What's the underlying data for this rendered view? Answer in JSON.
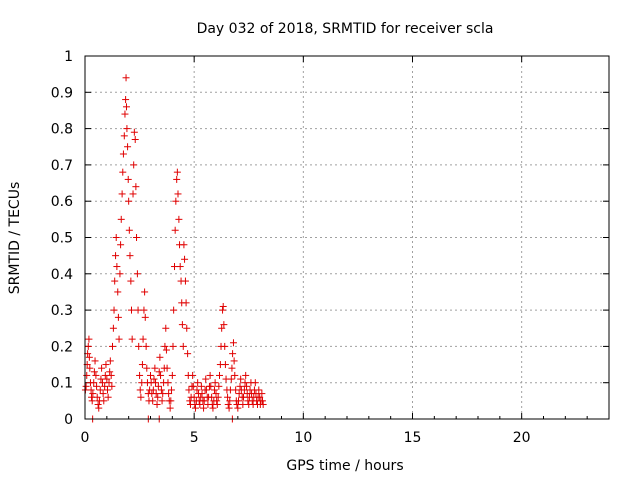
{
  "chart_data": {
    "type": "scatter",
    "title": "Day 032 of 2018, SRMTID for receiver scla",
    "xlabel": "GPS time / hours",
    "ylabel": "SRMTID / TECUs",
    "xlim": [
      0,
      24
    ],
    "ylim": [
      0,
      1
    ],
    "xticks": [
      0,
      5,
      10,
      15,
      20
    ],
    "xtick_labels": [
      "0",
      "5",
      "10",
      "15",
      "20"
    ],
    "yticks": [
      0,
      0.1,
      0.2,
      0.3,
      0.4,
      0.5,
      0.6,
      0.7,
      0.8,
      0.9,
      1
    ],
    "ytick_labels": [
      "0",
      "0.1",
      "0.2",
      "0.3",
      "0.4",
      "0.5",
      "0.6",
      "0.7",
      "0.8",
      "0.9",
      "1"
    ],
    "grid": true,
    "legend": "none",
    "marker": "plus",
    "color": "#e00000",
    "series": [
      {
        "points": [
          [
            0.02,
            0.08
          ],
          [
            0.05,
            0.09
          ],
          [
            0.08,
            0.12
          ],
          [
            0.1,
            0.15
          ],
          [
            0.12,
            0.18
          ],
          [
            0.15,
            0.2
          ],
          [
            0.18,
            0.22
          ],
          [
            0.2,
            0.17
          ],
          [
            0.22,
            0.14
          ],
          [
            0.25,
            0.1
          ],
          [
            0.28,
            0.08
          ],
          [
            0.3,
            0.06
          ],
          [
            0.33,
            0.05
          ],
          [
            0.36,
            0.07
          ],
          [
            0.4,
            0.1
          ],
          [
            0.43,
            0.13
          ],
          [
            0.46,
            0.16
          ],
          [
            0.5,
            0.12
          ],
          [
            0.53,
            0.09
          ],
          [
            0.56,
            0.06
          ],
          [
            0.6,
            0.04
          ],
          [
            0.63,
            0.03
          ],
          [
            0.66,
            0.05
          ],
          [
            0.7,
            0.08
          ],
          [
            0.73,
            0.11
          ],
          [
            0.76,
            0.14
          ],
          [
            0.8,
            0.1
          ],
          [
            0.83,
            0.07
          ],
          [
            0.86,
            0.05
          ],
          [
            0.9,
            0.09
          ],
          [
            0.93,
            0.12
          ],
          [
            0.96,
            0.15
          ],
          [
            1.0,
            0.11
          ],
          [
            1.03,
            0.08
          ],
          [
            1.06,
            0.06
          ],
          [
            1.1,
            0.1
          ],
          [
            1.13,
            0.13
          ],
          [
            1.16,
            0.16
          ],
          [
            1.2,
            0.12
          ],
          [
            1.23,
            0.09
          ],
          [
            1.26,
            0.2
          ],
          [
            1.3,
            0.25
          ],
          [
            1.33,
            0.3
          ],
          [
            1.36,
            0.38
          ],
          [
            1.4,
            0.45
          ],
          [
            1.43,
            0.5
          ],
          [
            1.46,
            0.42
          ],
          [
            1.5,
            0.35
          ],
          [
            1.53,
            0.28
          ],
          [
            1.56,
            0.22
          ],
          [
            1.6,
            0.4
          ],
          [
            1.63,
            0.48
          ],
          [
            1.66,
            0.55
          ],
          [
            1.7,
            0.62
          ],
          [
            1.73,
            0.68
          ],
          [
            1.76,
            0.73
          ],
          [
            1.8,
            0.78
          ],
          [
            1.83,
            0.84
          ],
          [
            1.86,
            0.88
          ],
          [
            1.88,
            0.94
          ],
          [
            1.9,
            0.86
          ],
          [
            1.92,
            0.8
          ],
          [
            1.95,
            0.75
          ],
          [
            1.98,
            0.66
          ],
          [
            2.0,
            0.6
          ],
          [
            2.03,
            0.52
          ],
          [
            2.06,
            0.45
          ],
          [
            2.1,
            0.38
          ],
          [
            2.13,
            0.3
          ],
          [
            2.16,
            0.22
          ],
          [
            2.2,
            0.62
          ],
          [
            2.23,
            0.7
          ],
          [
            2.26,
            0.79
          ],
          [
            2.3,
            0.77
          ],
          [
            2.33,
            0.64
          ],
          [
            2.36,
            0.5
          ],
          [
            2.4,
            0.4
          ],
          [
            2.43,
            0.3
          ],
          [
            2.46,
            0.2
          ],
          [
            2.5,
            0.12
          ],
          [
            2.53,
            0.08
          ],
          [
            2.56,
            0.06
          ],
          [
            2.6,
            0.1
          ],
          [
            2.63,
            0.15
          ],
          [
            2.66,
            0.22
          ],
          [
            2.7,
            0.3
          ],
          [
            2.73,
            0.35
          ],
          [
            2.76,
            0.28
          ],
          [
            2.8,
            0.2
          ],
          [
            2.83,
            0.14
          ],
          [
            2.86,
            0.1
          ],
          [
            2.9,
            0.07
          ],
          [
            2.93,
            0.05
          ],
          [
            2.96,
            0.08
          ],
          [
            3.0,
            0.12
          ],
          [
            3.03,
            0.1
          ],
          [
            3.06,
            0.07
          ],
          [
            3.1,
            0.05
          ],
          [
            3.13,
            0.08
          ],
          [
            3.16,
            0.11
          ],
          [
            3.2,
            0.14
          ],
          [
            3.23,
            0.1
          ],
          [
            3.26,
            0.07
          ],
          [
            3.3,
            0.04
          ],
          [
            3.33,
            0.06
          ],
          [
            3.36,
            0.09
          ],
          [
            3.4,
            0.13
          ],
          [
            3.43,
            0.17
          ],
          [
            3.46,
            0.12
          ],
          [
            3.5,
            0.08
          ],
          [
            3.53,
            0.05
          ],
          [
            3.56,
            0.07
          ],
          [
            3.6,
            0.1
          ],
          [
            3.63,
            0.14
          ],
          [
            3.66,
            0.2
          ],
          [
            3.7,
            0.25
          ],
          [
            3.73,
            0.19
          ],
          [
            3.76,
            0.14
          ],
          [
            3.8,
            0.1
          ],
          [
            3.83,
            0.07
          ],
          [
            3.86,
            0.05
          ],
          [
            3.9,
            0.03
          ],
          [
            3.93,
            0.05
          ],
          [
            3.96,
            0.08
          ],
          [
            4.0,
            0.12
          ],
          [
            4.03,
            0.2
          ],
          [
            4.06,
            0.3
          ],
          [
            4.1,
            0.42
          ],
          [
            4.13,
            0.52
          ],
          [
            4.16,
            0.6
          ],
          [
            4.2,
            0.66
          ],
          [
            4.23,
            0.68
          ],
          [
            4.26,
            0.62
          ],
          [
            4.3,
            0.55
          ],
          [
            4.33,
            0.48
          ],
          [
            4.36,
            0.42
          ],
          [
            4.4,
            0.38
          ],
          [
            4.43,
            0.32
          ],
          [
            4.46,
            0.26
          ],
          [
            4.5,
            0.2
          ],
          [
            4.53,
            0.48
          ],
          [
            4.56,
            0.44
          ],
          [
            4.6,
            0.38
          ],
          [
            4.63,
            0.32
          ],
          [
            4.66,
            0.25
          ],
          [
            4.7,
            0.18
          ],
          [
            4.73,
            0.12
          ],
          [
            4.76,
            0.08
          ],
          [
            4.8,
            0.05
          ],
          [
            4.83,
            0.04
          ],
          [
            4.86,
            0.06
          ],
          [
            4.9,
            0.09
          ],
          [
            4.93,
            0.12
          ],
          [
            4.96,
            0.09
          ],
          [
            5.0,
            0.06
          ],
          [
            5.03,
            0.04
          ],
          [
            5.06,
            0.03
          ],
          [
            5.1,
            0.05
          ],
          [
            5.13,
            0.08
          ],
          [
            5.16,
            0.1
          ],
          [
            5.2,
            0.07
          ],
          [
            5.23,
            0.05
          ],
          [
            5.26,
            0.04
          ],
          [
            5.3,
            0.06
          ],
          [
            5.33,
            0.09
          ],
          [
            5.36,
            0.07
          ],
          [
            5.4,
            0.05
          ],
          [
            5.43,
            0.03
          ],
          [
            5.46,
            0.05
          ],
          [
            5.5,
            0.08
          ],
          [
            5.53,
            0.11
          ],
          [
            5.56,
            0.08
          ],
          [
            5.6,
            0.06
          ],
          [
            5.63,
            0.04
          ],
          [
            5.66,
            0.06
          ],
          [
            5.7,
            0.09
          ],
          [
            5.73,
            0.12
          ],
          [
            5.76,
            0.09
          ],
          [
            5.8,
            0.06
          ],
          [
            5.83,
            0.04
          ],
          [
            5.86,
            0.03
          ],
          [
            5.9,
            0.05
          ],
          [
            5.93,
            0.08
          ],
          [
            5.96,
            0.1
          ],
          [
            6.0,
            0.07
          ],
          [
            6.03,
            0.05
          ],
          [
            6.06,
            0.04
          ],
          [
            6.1,
            0.06
          ],
          [
            6.13,
            0.09
          ],
          [
            6.16,
            0.12
          ],
          [
            6.2,
            0.15
          ],
          [
            6.23,
            0.2
          ],
          [
            6.26,
            0.25
          ],
          [
            6.3,
            0.3
          ],
          [
            6.33,
            0.31
          ],
          [
            6.36,
            0.26
          ],
          [
            6.4,
            0.2
          ],
          [
            6.43,
            0.15
          ],
          [
            6.46,
            0.11
          ],
          [
            6.5,
            0.08
          ],
          [
            6.53,
            0.06
          ],
          [
            6.56,
            0.04
          ],
          [
            6.6,
            0.03
          ],
          [
            6.63,
            0.05
          ],
          [
            6.66,
            0.08
          ],
          [
            6.7,
            0.11
          ],
          [
            6.73,
            0.14
          ],
          [
            6.76,
            0.18
          ],
          [
            6.8,
            0.21
          ],
          [
            6.83,
            0.16
          ],
          [
            6.86,
            0.12
          ],
          [
            6.9,
            0.08
          ],
          [
            6.93,
            0.05
          ],
          [
            6.96,
            0.04
          ],
          [
            7.0,
            0.03
          ],
          [
            7.03,
            0.05
          ],
          [
            7.06,
            0.07
          ],
          [
            7.1,
            0.09
          ],
          [
            7.13,
            0.11
          ],
          [
            7.16,
            0.08
          ],
          [
            7.2,
            0.06
          ],
          [
            7.23,
            0.04
          ],
          [
            7.26,
            0.06
          ],
          [
            7.3,
            0.08
          ],
          [
            7.33,
            0.1
          ],
          [
            7.36,
            0.12
          ],
          [
            7.4,
            0.09
          ],
          [
            7.43,
            0.07
          ],
          [
            7.46,
            0.05
          ],
          [
            7.5,
            0.04
          ],
          [
            7.53,
            0.06
          ],
          [
            7.56,
            0.08
          ],
          [
            7.6,
            0.1
          ],
          [
            7.63,
            0.07
          ],
          [
            7.66,
            0.05
          ],
          [
            7.7,
            0.04
          ],
          [
            7.73,
            0.06
          ],
          [
            7.76,
            0.08
          ],
          [
            7.8,
            0.1
          ],
          [
            7.83,
            0.07
          ],
          [
            7.86,
            0.05
          ],
          [
            7.9,
            0.04
          ],
          [
            7.93,
            0.06
          ],
          [
            7.96,
            0.08
          ],
          [
            8.0,
            0.06
          ],
          [
            8.03,
            0.04
          ],
          [
            8.06,
            0.05
          ],
          [
            8.1,
            0.07
          ],
          [
            8.13,
            0.05
          ],
          [
            8.16,
            0.04
          ],
          [
            0.35,
            0.0
          ],
          [
            2.9,
            0.0
          ],
          [
            3.4,
            0.0
          ],
          [
            6.75,
            0.0
          ]
        ]
      }
    ]
  }
}
